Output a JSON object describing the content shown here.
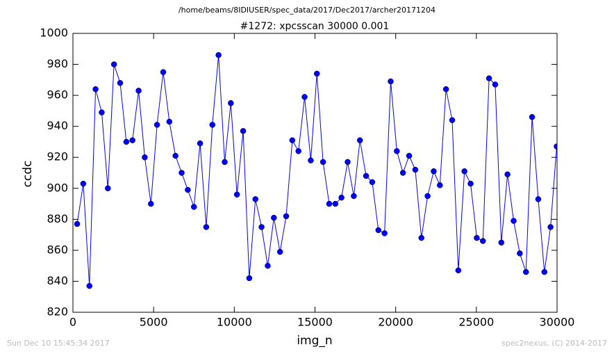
{
  "chart_data": {
    "type": "line",
    "path": "/home/beams/8IDIUSER/spec_data/2017/Dec2017/archer20171204",
    "title": "#1272: xpcsscan 30000 0.001",
    "xlabel": "img_n",
    "ylabel": "ccdc",
    "footer_left": "Sun Dec 10 15:45:34 2017",
    "footer_right": "spec2nexus, (C) 2014-2017",
    "x": [
      260,
      641,
      1022,
      1403,
      1784,
      2165,
      2546,
      2927,
      3308,
      3689,
      4070,
      4451,
      4832,
      5213,
      5594,
      5975,
      6356,
      6737,
      7118,
      7499,
      7880,
      8261,
      8642,
      9023,
      9404,
      9785,
      10166,
      10547,
      10928,
      11309,
      11690,
      12071,
      12452,
      12833,
      13214,
      13595,
      13976,
      14357,
      14738,
      15119,
      15500,
      15881,
      16262,
      16643,
      17024,
      17405,
      17786,
      18167,
      18548,
      18929,
      19310,
      19691,
      20072,
      20453,
      20834,
      21215,
      21596,
      21977,
      22358,
      22739,
      23120,
      23501,
      23882,
      24263,
      24644,
      25025,
      25406,
      25787,
      26168,
      26549,
      26930,
      27311,
      27692,
      28073,
      28454,
      28835,
      29216,
      29597,
      29978
    ],
    "series": [
      {
        "color": "#0000ff",
        "values": [
          877,
          903,
          837,
          964,
          949,
          900,
          980,
          968,
          930,
          931,
          963,
          920,
          890,
          941,
          975,
          943,
          921,
          910,
          899,
          888,
          929,
          875,
          941,
          986,
          917,
          955,
          896,
          937,
          842,
          893,
          875,
          850,
          881,
          859,
          882,
          931,
          924,
          959,
          918,
          974,
          917,
          890,
          890,
          894,
          917,
          895,
          931,
          908,
          904,
          873,
          871,
          969,
          924,
          910,
          921,
          912,
          868,
          895,
          911,
          902,
          964,
          944,
          847,
          911,
          903,
          868,
          866,
          971,
          967,
          865,
          909,
          879,
          858,
          846,
          946,
          893,
          846,
          875,
          927
        ]
      }
    ],
    "xlim": [
      0,
      30000
    ],
    "xticks": [
      0,
      5000,
      10000,
      15000,
      20000,
      25000,
      30000
    ],
    "ylim": [
      820,
      1000
    ],
    "yticks": [
      820,
      840,
      860,
      880,
      900,
      920,
      940,
      960,
      980,
      1000
    ]
  }
}
